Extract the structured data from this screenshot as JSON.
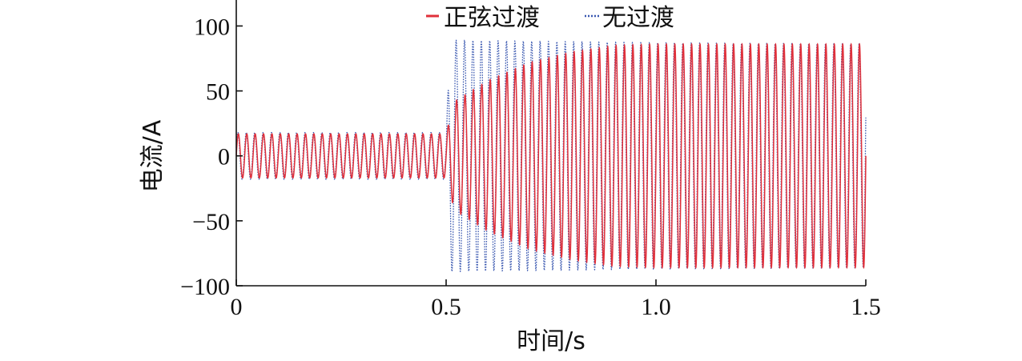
{
  "chart_data": {
    "type": "line",
    "title": "",
    "xlabel": "时间/s",
    "ylabel": "电流/A",
    "xlim": [
      0,
      1.5
    ],
    "ylim": [
      -100,
      120
    ],
    "xticks": [
      0,
      0.5,
      1.0,
      1.5
    ],
    "xtick_labels": [
      "0",
      "0.5",
      "1.0",
      "1.5"
    ],
    "yticks": [
      -100,
      -50,
      0,
      50,
      100
    ],
    "ytick_labels": [
      "−100",
      "−50",
      "0",
      "50",
      "100"
    ],
    "grid": false,
    "legend_position": "top-center",
    "frequency_hz": 50,
    "series": [
      {
        "name": "正弦过渡",
        "color": "#e0303a",
        "style": "solid",
        "x": [
          0,
          0.5,
          0.52,
          0.6,
          0.7,
          0.8,
          0.9,
          1.0,
          1.5
        ],
        "amplitude": [
          17,
          17,
          42,
          58,
          72,
          80,
          85,
          86,
          86
        ]
      },
      {
        "name": "无过渡",
        "color": "#3a58b0",
        "style": "dotted",
        "x": [
          0,
          0.5,
          0.51,
          1.0,
          1.5
        ],
        "amplitude": [
          18,
          18,
          89,
          87,
          86
        ]
      }
    ]
  }
}
